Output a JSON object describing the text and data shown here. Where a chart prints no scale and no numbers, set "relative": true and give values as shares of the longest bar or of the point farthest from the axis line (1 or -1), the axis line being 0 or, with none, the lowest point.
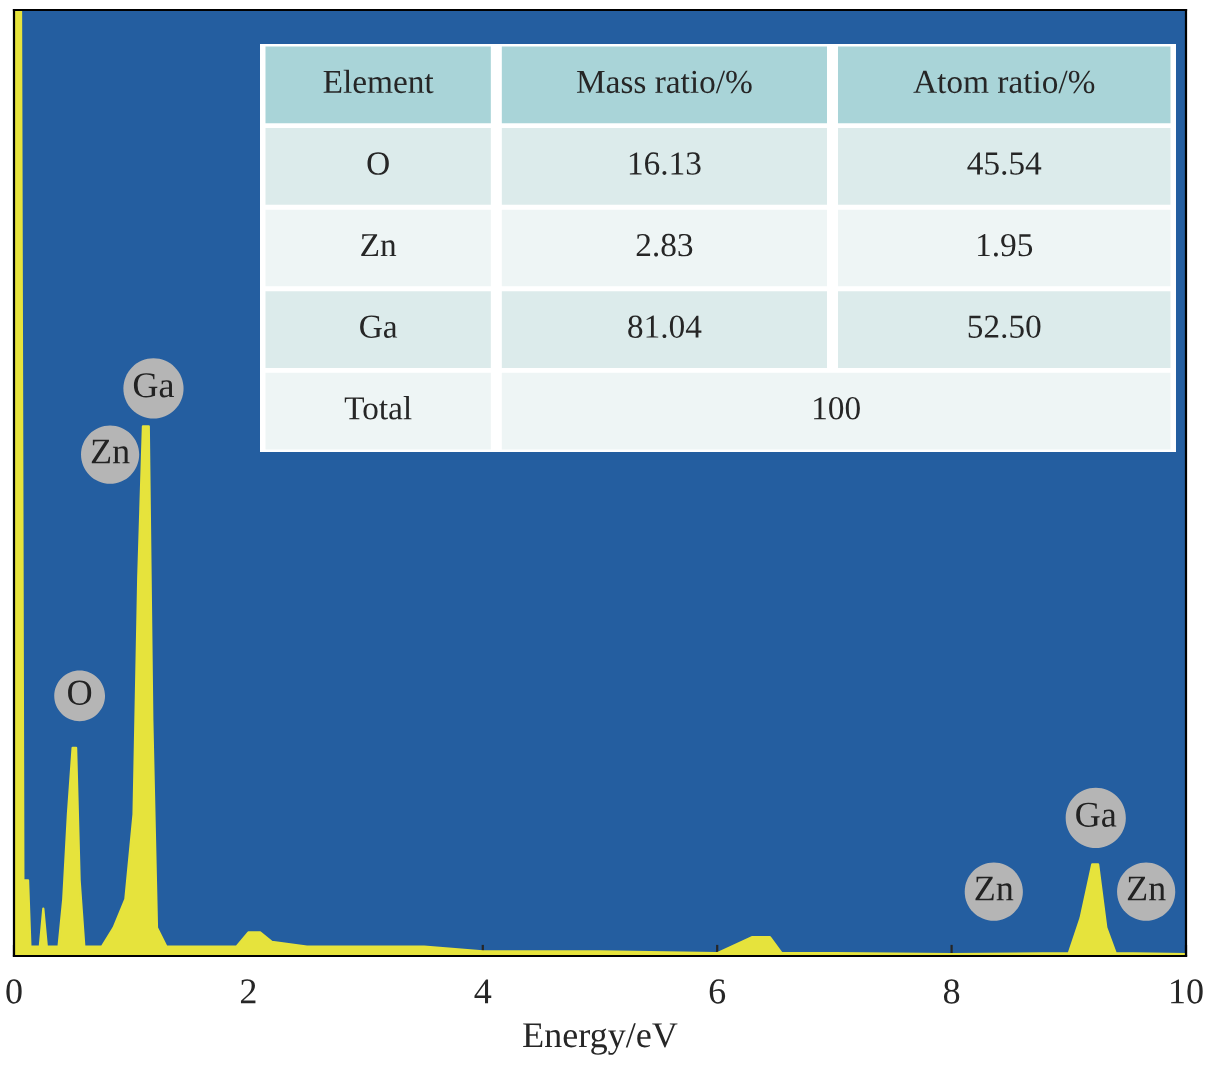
{
  "chart_data": [
    {
      "type": "area",
      "relative": true,
      "xlabel": "Energy/eV",
      "xlim": [
        0,
        10
      ],
      "xticks": [
        0,
        2,
        4,
        6,
        8,
        10
      ],
      "grid": false,
      "legend": false,
      "x": [
        0.0,
        0.06,
        0.08,
        0.12,
        0.14,
        0.22,
        0.25,
        0.28,
        0.38,
        0.42,
        0.46,
        0.5,
        0.53,
        0.56,
        0.6,
        0.75,
        0.85,
        0.95,
        1.02,
        1.06,
        1.1,
        1.15,
        1.18,
        1.22,
        1.3,
        1.6,
        1.9,
        2.0,
        2.1,
        2.2,
        2.5,
        3.0,
        3.5,
        4.0,
        5.0,
        6.0,
        6.3,
        6.45,
        6.55,
        7.0,
        8.0,
        9.0,
        9.1,
        9.2,
        9.25,
        9.32,
        9.4,
        10.0
      ],
      "series": [
        {
          "color": "#e6e33c",
          "values": [
            1.0,
            1.0,
            0.08,
            0.08,
            0.01,
            0.01,
            0.05,
            0.01,
            0.01,
            0.06,
            0.15,
            0.22,
            0.22,
            0.08,
            0.01,
            0.01,
            0.03,
            0.06,
            0.15,
            0.4,
            0.56,
            0.56,
            0.25,
            0.03,
            0.01,
            0.01,
            0.01,
            0.025,
            0.025,
            0.015,
            0.01,
            0.01,
            0.01,
            0.005,
            0.005,
            0.003,
            0.02,
            0.02,
            0.003,
            0.003,
            0.002,
            0.003,
            0.04,
            0.097,
            0.097,
            0.03,
            0.003,
            0.002
          ]
        }
      ],
      "annotations": [
        {
          "text": "O",
          "x": 0.56,
          "y": 0.275
        },
        {
          "text": "Zn",
          "x": 0.82,
          "y": 0.53
        },
        {
          "text": "Ga",
          "x": 1.19,
          "y": 0.6
        },
        {
          "text": "Zn",
          "x": 8.36,
          "y": 0.068
        },
        {
          "text": "Ga",
          "x": 9.23,
          "y": 0.146
        },
        {
          "text": "Zn",
          "x": 9.66,
          "y": 0.068
        }
      ]
    },
    {
      "type": "other",
      "categories": [
        "Element",
        "Mass ratio/%",
        "Atom ratio/%"
      ],
      "y_categories": [
        "O",
        "Zn",
        "Ga",
        "Total"
      ],
      "cell_labels": [
        [
          "16.13",
          "45.54"
        ],
        [
          "2.83",
          "1.95"
        ],
        [
          "81.04",
          "52.50"
        ],
        [
          "100",
          null
        ]
      ]
    }
  ]
}
